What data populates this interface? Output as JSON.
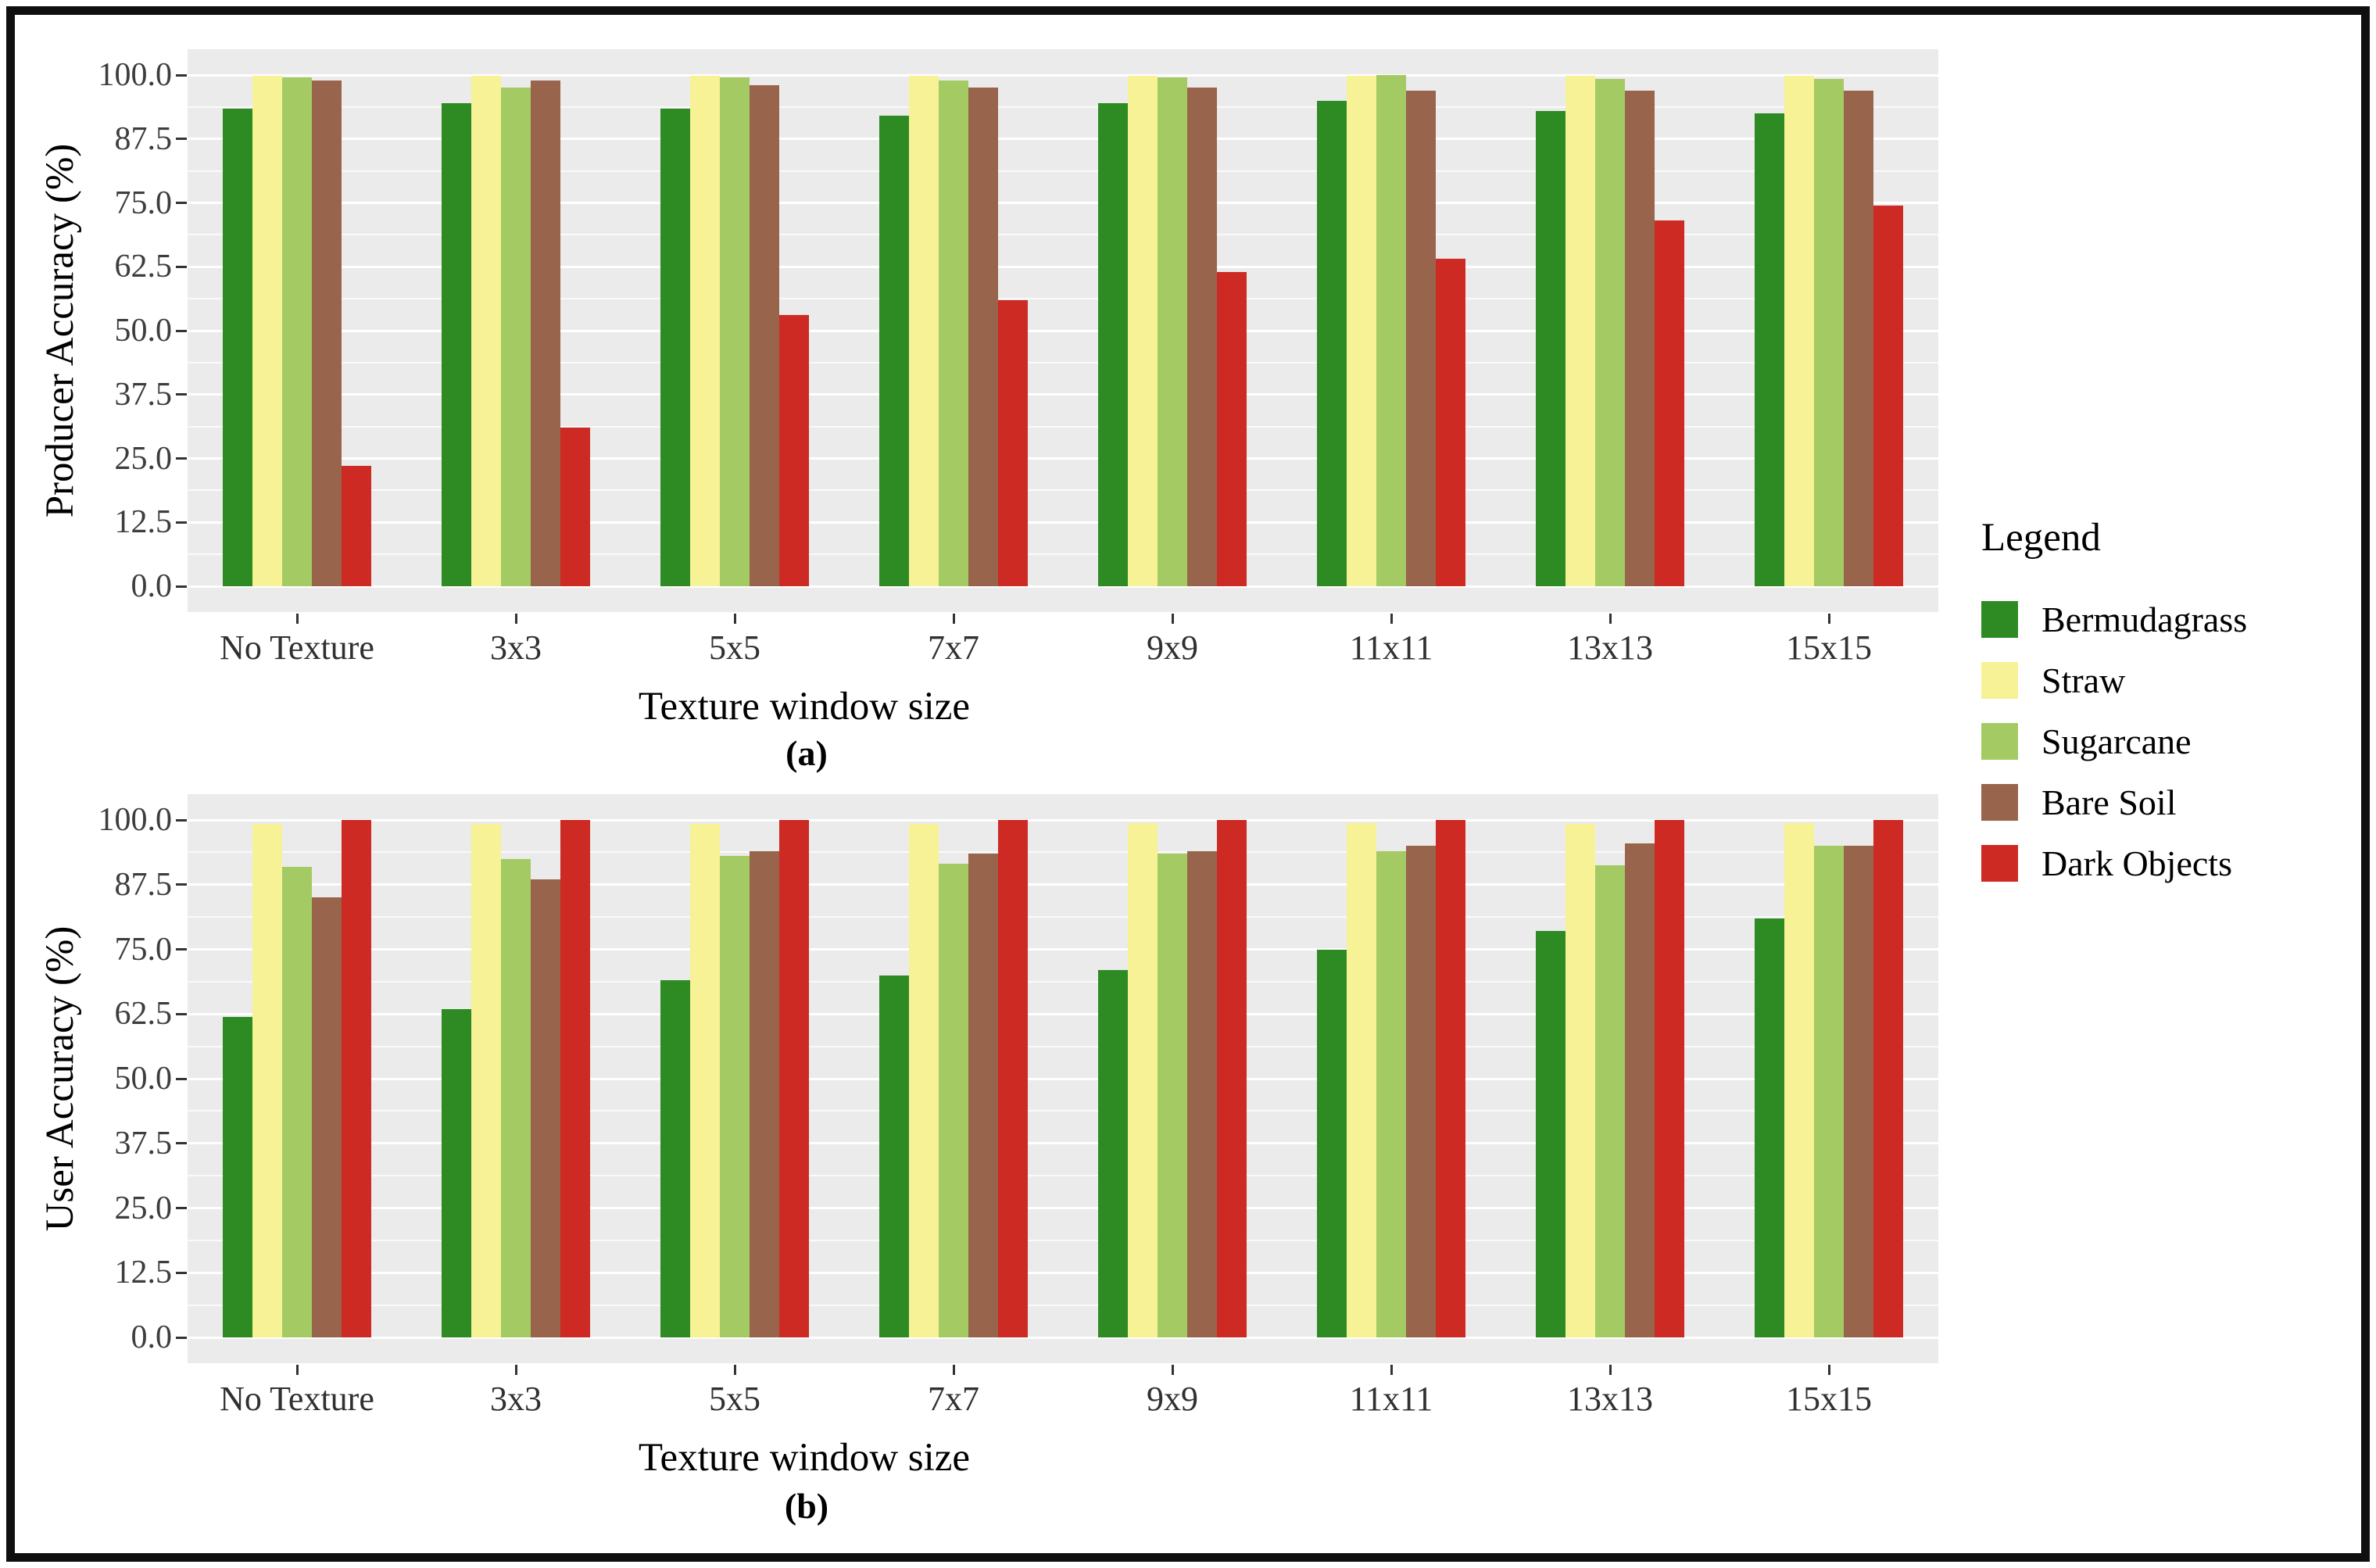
{
  "figure": {
    "background": "#ffffff",
    "border_color": "#0f0f0f",
    "panel_background": "#ebebeb",
    "gridline_color": "#ffffff",
    "tick_label_color": "#3d3d3d"
  },
  "legend": {
    "title": "Legend",
    "items": [
      {
        "label": "Bermudagrass",
        "color": "#2e8b24"
      },
      {
        "label": "Straw",
        "color": "#f6f295"
      },
      {
        "label": "Sugarcane",
        "color": "#a4ca63"
      },
      {
        "label": "Bare Soil",
        "color": "#98644b"
      },
      {
        "label": "Dark Objects",
        "color": "#cd2a24"
      }
    ]
  },
  "chart_data": [
    {
      "type": "bar",
      "caption": "(a)",
      "ylabel": "Producer Accuracy (%)",
      "xlabel": "Texture window size",
      "ylim": [
        0,
        100
      ],
      "y_tick_labels": [
        "0.0",
        "12.5",
        "25.0",
        "37.5",
        "50.0",
        "62.5",
        "75.0",
        "87.5",
        "100.0"
      ],
      "grid": "white major and minor gridlines on gray panel",
      "legend_position": "right",
      "categories": [
        "No Texture",
        "3x3",
        "5x5",
        "7x7",
        "9x9",
        "11x11",
        "13x13",
        "15x15"
      ],
      "series": [
        {
          "name": "Bermudagrass",
          "color": "#2e8b24",
          "values": [
            93.5,
            94.5,
            93.5,
            92.0,
            94.5,
            95.0,
            93.0,
            92.5
          ]
        },
        {
          "name": "Straw",
          "color": "#f6f295",
          "values": [
            99.9,
            99.9,
            99.9,
            99.9,
            99.9,
            99.9,
            99.9,
            99.9
          ]
        },
        {
          "name": "Sugarcane",
          "color": "#a4ca63",
          "values": [
            99.5,
            97.5,
            99.5,
            99.0,
            99.5,
            100.0,
            99.3,
            99.3
          ]
        },
        {
          "name": "Bare Soil",
          "color": "#98644b",
          "values": [
            99.0,
            99.0,
            98.0,
            97.5,
            97.5,
            97.0,
            96.9,
            96.9
          ]
        },
        {
          "name": "Dark Objects",
          "color": "#cd2a24",
          "values": [
            23.5,
            31.0,
            53.0,
            56.0,
            61.5,
            64.0,
            71.5,
            74.5
          ]
        }
      ]
    },
    {
      "type": "bar",
      "caption": "(b)",
      "ylabel": "User Accuracy (%)",
      "xlabel": "Texture window size",
      "ylim": [
        0,
        100
      ],
      "y_tick_labels": [
        "0.0",
        "12.5",
        "25.0",
        "37.5",
        "50.0",
        "62.5",
        "75.0",
        "87.5",
        "100.0"
      ],
      "grid": "white major and minor gridlines on gray panel",
      "legend_position": "right",
      "categories": [
        "No Texture",
        "3x3",
        "5x5",
        "7x7",
        "9x9",
        "11x11",
        "13x13",
        "15x15"
      ],
      "series": [
        {
          "name": "Bermudagrass",
          "color": "#2e8b24",
          "values": [
            62.0,
            63.5,
            69.0,
            70.0,
            71.0,
            75.0,
            78.5,
            81.0
          ]
        },
        {
          "name": "Straw",
          "color": "#f6f295",
          "values": [
            99.3,
            99.3,
            99.3,
            99.3,
            99.4,
            99.4,
            99.3,
            99.4
          ]
        },
        {
          "name": "Sugarcane",
          "color": "#a4ca63",
          "values": [
            91.0,
            92.5,
            93.0,
            91.5,
            93.5,
            94.0,
            91.3,
            95.0
          ]
        },
        {
          "name": "Bare Soil",
          "color": "#98644b",
          "values": [
            85.0,
            88.5,
            94.0,
            93.5,
            94.0,
            95.0,
            95.5,
            95.0
          ]
        },
        {
          "name": "Dark Objects",
          "color": "#cd2a24",
          "values": [
            100.0,
            100.0,
            100.0,
            100.0,
            100.0,
            100.0,
            100.0,
            100.0
          ]
        }
      ]
    }
  ]
}
